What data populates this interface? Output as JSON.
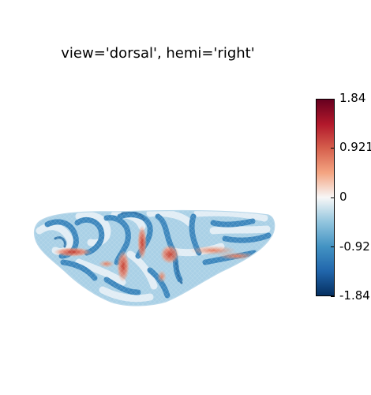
{
  "figure": {
    "title": "view='dorsal', hemi='right'"
  },
  "colorbar": {
    "colormap": "RdBu_r",
    "min": -1.84,
    "max": 1.84,
    "colors": [
      "#053061",
      "#2166ac",
      "#4393c3",
      "#92c5de",
      "#f7f7f7",
      "#f4a582",
      "#d6604d",
      "#b2182b",
      "#67001f"
    ],
    "ticks": [
      {
        "label": "1.84",
        "value": 1.84
      },
      {
        "label": "0.921",
        "value": 0.921
      },
      {
        "label": "0",
        "value": 0
      },
      {
        "label": "-0.92",
        "value": -0.921
      },
      {
        "label": "-1.84",
        "value": -1.84
      }
    ]
  },
  "surface": {
    "base_color": "#9ec9e2",
    "sulcus_color": "#3f8fc4",
    "gyrus_color": "#e9f1f7",
    "hot_color": "#d0553f"
  }
}
